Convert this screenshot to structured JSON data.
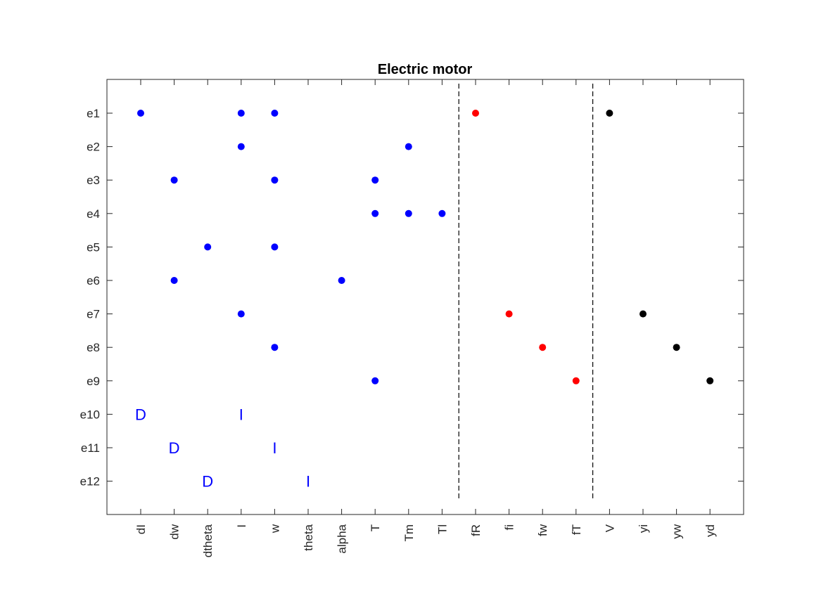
{
  "chart_data": {
    "type": "scatter",
    "title": "Electric motor",
    "xlabel": "",
    "ylabel": "",
    "x_categories": [
      "dI",
      "dw",
      "dtheta",
      "I",
      "w",
      "theta",
      "alpha",
      "T",
      "Tm",
      "Tl",
      "fR",
      "fi",
      "fw",
      "fT",
      "V",
      "yi",
      "yw",
      "yd"
    ],
    "y_categories": [
      "e1",
      "e2",
      "e3",
      "e4",
      "e5",
      "e6",
      "e7",
      "e8",
      "e9",
      "e10",
      "e11",
      "e12"
    ],
    "grid": false,
    "legend": "none",
    "colors": {
      "unknown": "#0000ff",
      "fault": "#ff0000",
      "known": "#000000",
      "axes": "#262626",
      "separator": "#000000"
    },
    "separators_after_column": [
      "Tl",
      "fT"
    ],
    "series": [
      {
        "color_key": "unknown",
        "points": [
          {
            "x": "dI",
            "y": "e1"
          },
          {
            "x": "I",
            "y": "e1"
          },
          {
            "x": "w",
            "y": "e1"
          },
          {
            "x": "I",
            "y": "e2"
          },
          {
            "x": "Tm",
            "y": "e2"
          },
          {
            "x": "dw",
            "y": "e3"
          },
          {
            "x": "w",
            "y": "e3"
          },
          {
            "x": "T",
            "y": "e3"
          },
          {
            "x": "T",
            "y": "e4"
          },
          {
            "x": "Tm",
            "y": "e4"
          },
          {
            "x": "Tl",
            "y": "e4"
          },
          {
            "x": "dtheta",
            "y": "e5"
          },
          {
            "x": "w",
            "y": "e5"
          },
          {
            "x": "dw",
            "y": "e6"
          },
          {
            "x": "alpha",
            "y": "e6"
          },
          {
            "x": "I",
            "y": "e7"
          },
          {
            "x": "w",
            "y": "e8"
          },
          {
            "x": "T",
            "y": "e9"
          }
        ]
      },
      {
        "color_key": "fault",
        "points": [
          {
            "x": "fR",
            "y": "e1"
          },
          {
            "x": "fi",
            "y": "e7"
          },
          {
            "x": "fw",
            "y": "e8"
          },
          {
            "x": "fT",
            "y": "e9"
          }
        ]
      },
      {
        "color_key": "known",
        "points": [
          {
            "x": "V",
            "y": "e1"
          },
          {
            "x": "yi",
            "y": "e7"
          },
          {
            "x": "yw",
            "y": "e8"
          },
          {
            "x": "yd",
            "y": "e9"
          }
        ]
      }
    ],
    "letter_marks": [
      {
        "x": "dI",
        "y": "e10",
        "text": "D"
      },
      {
        "x": "I",
        "y": "e10",
        "text": "I"
      },
      {
        "x": "dw",
        "y": "e11",
        "text": "D"
      },
      {
        "x": "w",
        "y": "e11",
        "text": "I"
      },
      {
        "x": "dtheta",
        "y": "e12",
        "text": "D"
      },
      {
        "x": "theta",
        "y": "e12",
        "text": "I"
      }
    ]
  }
}
